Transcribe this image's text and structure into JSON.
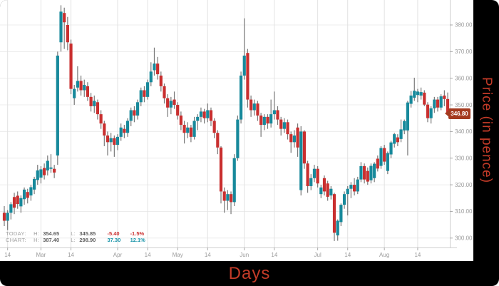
{
  "axis_titles": {
    "x": "Days",
    "y": "Price (in pence)",
    "color": "#c43b28"
  },
  "price_badge": {
    "value": "346.80",
    "bg": "#a43a1f",
    "text_color": "#ffffff"
  },
  "legend": {
    "rows": [
      {
        "name": "TODAY:",
        "h_label": "H:",
        "h": "354.65",
        "l_label": "L:",
        "l": "345.85",
        "change": "-5.40",
        "pct": "-1.5%",
        "change_color": "#cc3333"
      },
      {
        "name": "CHART:",
        "h_label": "H:",
        "h": "387.40",
        "l_label": "L:",
        "l": "298.90",
        "change": "37.30",
        "pct": "12.1%",
        "change_color": "#1793a8"
      }
    ]
  },
  "chart_data": {
    "type": "candlestick",
    "title": "",
    "xlabel": "Days",
    "ylabel": "Price (in pence)",
    "ylim": [
      295,
      389
    ],
    "grid": true,
    "legend_position": "bottom-left",
    "y_ticks": [
      380,
      370,
      360,
      350,
      340,
      330,
      320,
      310,
      300
    ],
    "x_labels": [
      {
        "t": "14",
        "i": 1
      },
      {
        "t": "Mar",
        "i": 11
      },
      {
        "t": "14",
        "i": 20
      },
      {
        "t": "Apr",
        "i": 34
      },
      {
        "t": "14",
        "i": 43
      },
      {
        "t": "May",
        "i": 52
      },
      {
        "t": "14",
        "i": 61
      },
      {
        "t": "Jun",
        "i": 72
      },
      {
        "t": "14",
        "i": 81
      },
      {
        "t": "Jul",
        "i": 94
      },
      {
        "t": "14",
        "i": 103
      },
      {
        "t": "Aug",
        "i": 114
      },
      {
        "t": "14",
        "i": 124
      }
    ],
    "last_price": 346.8,
    "chart_high": 387.4,
    "chart_low": 298.9,
    "colors": {
      "up": "#17899b",
      "down": "#c92f2f",
      "wick": "#787878",
      "grid_h": "#ececec",
      "grid_v": "#e2e2e2",
      "axis": "#cfcfcf",
      "tick": "#aaaaaa",
      "tick_text": "#9b9b9b"
    },
    "candles": [
      [
        309.5,
        312.0,
        304.5,
        306.5
      ],
      [
        306.5,
        310.5,
        303.0,
        309.5
      ],
      [
        309.5,
        313.5,
        307.0,
        312.7
      ],
      [
        315.4,
        317.0,
        309.0,
        311.4
      ],
      [
        315.9,
        317.5,
        311.0,
        312.8
      ],
      [
        311.9,
        316.0,
        309.5,
        315.0
      ],
      [
        314.6,
        319.0,
        312.5,
        318.2
      ],
      [
        317.3,
        318.5,
        313.0,
        315.1
      ],
      [
        316.0,
        320.0,
        314.0,
        319.1
      ],
      [
        318.2,
        323.0,
        316.5,
        322.2
      ],
      [
        321.8,
        327.5,
        320.0,
        325.4
      ],
      [
        322.7,
        327.0,
        320.5,
        325.8
      ],
      [
        326.3,
        328.0,
        322.0,
        323.6
      ],
      [
        325.4,
        331.0,
        323.5,
        329.0
      ],
      [
        326.0,
        331.5,
        324.5,
        326.5
      ],
      [
        326.0,
        327.5,
        322.5,
        324.6
      ],
      [
        331.0,
        370.0,
        327.5,
        368.5
      ],
      [
        373.5,
        387.4,
        370.0,
        385.0
      ],
      [
        384.5,
        386.5,
        371.0,
        381.0
      ],
      [
        380.0,
        383.0,
        370.5,
        373.5
      ],
      [
        373.0,
        374.5,
        354.0,
        356.0
      ],
      [
        352.5,
        357.5,
        350.0,
        356.0
      ],
      [
        356.5,
        364.5,
        355.0,
        359.0
      ],
      [
        359.0,
        361.0,
        353.5,
        355.5
      ],
      [
        355.5,
        359.5,
        353.0,
        357.5
      ],
      [
        357.0,
        358.5,
        351.5,
        353.0
      ],
      [
        353.0,
        354.5,
        347.5,
        349.5
      ],
      [
        349.5,
        353.5,
        347.0,
        351.5
      ],
      [
        351.0,
        352.0,
        344.5,
        346.5
      ],
      [
        346.5,
        348.0,
        341.0,
        343.0
      ],
      [
        343.0,
        344.0,
        334.5,
        338.5
      ],
      [
        338.5,
        340.0,
        331.0,
        336.0
      ],
      [
        336.0,
        339.5,
        332.5,
        337.5
      ],
      [
        337.5,
        338.5,
        330.5,
        335.0
      ],
      [
        335.0,
        339.0,
        333.0,
        338.0
      ],
      [
        338.0,
        343.0,
        336.5,
        341.5
      ],
      [
        341.0,
        342.5,
        337.5,
        339.5
      ],
      [
        339.5,
        345.0,
        338.0,
        344.0
      ],
      [
        344.0,
        349.0,
        342.0,
        348.0
      ],
      [
        348.0,
        349.5,
        343.5,
        346.0
      ],
      [
        346.0,
        352.0,
        344.5,
        351.0
      ],
      [
        351.0,
        356.5,
        349.5,
        355.5
      ],
      [
        355.5,
        357.0,
        351.0,
        353.0
      ],
      [
        353.0,
        359.5,
        352.0,
        358.5
      ],
      [
        358.5,
        366.0,
        357.0,
        362.5
      ],
      [
        363.0,
        371.5,
        361.0,
        365.5
      ],
      [
        365.5,
        368.0,
        359.5,
        361.5
      ],
      [
        361.0,
        362.5,
        355.0,
        357.0
      ],
      [
        357.0,
        358.0,
        350.5,
        352.5
      ],
      [
        352.5,
        354.0,
        345.5,
        349.0
      ],
      [
        349.0,
        353.0,
        346.5,
        351.5
      ],
      [
        352.0,
        355.0,
        348.5,
        350.0
      ],
      [
        350.0,
        351.0,
        344.5,
        346.0
      ],
      [
        346.0,
        347.5,
        340.5,
        342.5
      ],
      [
        342.5,
        344.0,
        335.5,
        339.5
      ],
      [
        339.5,
        343.5,
        337.5,
        341.5
      ],
      [
        341.5,
        342.5,
        336.0,
        338.0
      ],
      [
        338.0,
        345.5,
        337.0,
        344.0
      ],
      [
        344.0,
        346.5,
        340.5,
        345.5
      ],
      [
        345.5,
        349.0,
        343.5,
        347.5
      ],
      [
        347.5,
        348.5,
        343.0,
        345.0
      ],
      [
        345.0,
        350.5,
        343.5,
        348.0
      ],
      [
        348.0,
        349.0,
        342.0,
        344.0
      ],
      [
        344.0,
        345.0,
        337.5,
        339.5
      ],
      [
        339.5,
        340.5,
        331.5,
        334.0
      ],
      [
        334.0,
        334.5,
        313.0,
        317.5
      ],
      [
        317.5,
        319.0,
        309.5,
        314.0
      ],
      [
        314.0,
        318.0,
        310.5,
        316.5
      ],
      [
        316.5,
        317.5,
        309.0,
        313.5
      ],
      [
        313.5,
        331.5,
        312.0,
        330.0
      ],
      [
        330.0,
        346.0,
        329.0,
        344.5
      ],
      [
        344.5,
        362.5,
        343.0,
        361.0
      ],
      [
        361.0,
        382.5,
        359.5,
        368.5
      ],
      [
        369.5,
        371.0,
        349.0,
        352.0
      ],
      [
        352.0,
        353.5,
        345.5,
        348.0
      ],
      [
        348.0,
        352.0,
        346.0,
        350.5
      ],
      [
        350.5,
        351.5,
        344.0,
        346.0
      ],
      [
        346.0,
        347.0,
        338.0,
        342.5
      ],
      [
        342.5,
        346.5,
        340.5,
        345.5
      ],
      [
        345.5,
        346.5,
        341.0,
        343.0
      ],
      [
        343.0,
        352.0,
        341.5,
        346.5
      ],
      [
        346.5,
        355.0,
        344.5,
        348.0
      ],
      [
        348.0,
        349.5,
        342.5,
        344.5
      ],
      [
        344.5,
        345.5,
        338.5,
        341.0
      ],
      [
        341.0,
        345.0,
        339.5,
        343.5
      ],
      [
        343.5,
        344.5,
        337.0,
        339.0
      ],
      [
        339.0,
        340.0,
        332.0,
        336.0
      ],
      [
        336.0,
        340.5,
        334.0,
        338.5
      ],
      [
        341.5,
        343.0,
        330.5,
        334.0
      ],
      [
        318.0,
        342.0,
        316.0,
        340.0
      ],
      [
        340.0,
        340.5,
        326.0,
        328.0
      ],
      [
        328.0,
        329.0,
        317.0,
        319.5
      ],
      [
        319.5,
        324.0,
        318.0,
        322.5
      ],
      [
        322.5,
        327.5,
        321.0,
        326.0
      ],
      [
        326.0,
        327.0,
        319.0,
        320.5
      ],
      [
        316.5,
        320.0,
        315.0,
        319.0
      ],
      [
        322.5,
        323.5,
        316.0,
        317.5
      ],
      [
        320.5,
        321.5,
        314.0,
        315.5
      ],
      [
        316.0,
        319.5,
        314.5,
        318.5
      ],
      [
        316.5,
        317.0,
        298.9,
        302.0
      ],
      [
        301.0,
        307.0,
        299.0,
        306.5
      ],
      [
        306.0,
        313.0,
        304.5,
        312.5
      ],
      [
        312.5,
        317.5,
        311.0,
        316.5
      ],
      [
        316.5,
        319.5,
        308.5,
        318.5
      ],
      [
        318.5,
        321.0,
        315.0,
        320.0
      ],
      [
        320.0,
        322.5,
        316.0,
        317.5
      ],
      [
        317.5,
        323.0,
        316.5,
        322.0
      ],
      [
        322.0,
        328.5,
        321.0,
        327.0
      ],
      [
        327.0,
        328.0,
        320.5,
        322.0
      ],
      [
        325.2,
        326.5,
        320.0,
        321.2
      ],
      [
        321.7,
        328.0,
        320.5,
        327.1
      ],
      [
        322.5,
        328.5,
        321.0,
        327.9
      ],
      [
        329.8,
        331.0,
        325.0,
        326.1
      ],
      [
        327.1,
        334.5,
        326.0,
        333.8
      ],
      [
        333.8,
        335.0,
        327.5,
        328.7
      ],
      [
        325.2,
        332.5,
        324.0,
        331.9
      ],
      [
        331.4,
        336.5,
        330.0,
        335.9
      ],
      [
        335.4,
        339.5,
        334.0,
        339.0
      ],
      [
        337.8,
        339.0,
        334.5,
        336.0
      ],
      [
        337.2,
        344.5,
        336.0,
        340.8
      ],
      [
        340.4,
        344.5,
        339.0,
        343.9
      ],
      [
        340.4,
        351.5,
        331.0,
        350.9
      ],
      [
        350.4,
        355.2,
        349.0,
        353.5
      ],
      [
        352.7,
        360.2,
        351.5,
        355.3
      ],
      [
        353.7,
        356.0,
        351.0,
        355.0
      ],
      [
        353.5,
        356.5,
        352.0,
        354.8
      ],
      [
        354.6,
        355.5,
        349.5,
        350.1
      ],
      [
        350.1,
        351.0,
        343.5,
        345.0
      ],
      [
        345.0,
        349.5,
        343.0,
        348.7
      ],
      [
        348.7,
        353.0,
        347.0,
        352.0
      ],
      [
        352.0,
        353.0,
        347.5,
        349.0
      ],
      [
        349.0,
        354.0,
        348.0,
        353.2
      ],
      [
        353.5,
        355.5,
        349.5,
        352.2
      ],
      [
        352.2,
        354.65,
        345.85,
        346.8
      ]
    ]
  }
}
